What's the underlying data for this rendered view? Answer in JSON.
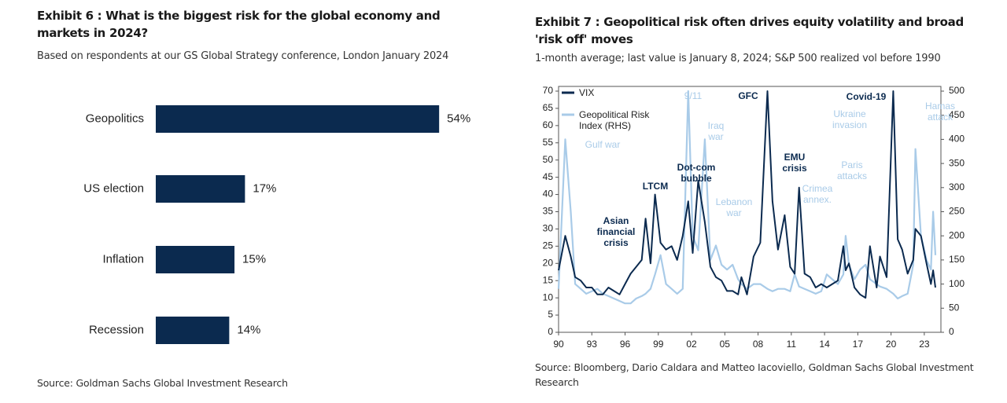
{
  "chart_data": [
    {
      "type": "bar",
      "orientation": "horizontal",
      "title": "Exhibit 6 : What is the biggest risk for the global economy and markets in 2024?",
      "subtitle": "Based on respondents at our GS Global Strategy conference, London January 2024",
      "source": "Source: Goldman Sachs Global Investment Research",
      "categories": [
        "Geopolitics",
        "US election",
        "Inflation",
        "Recession"
      ],
      "values": [
        54,
        17,
        15,
        14
      ],
      "value_labels": [
        "54%",
        "17%",
        "15%",
        "14%"
      ],
      "color": "#0b2a4f"
    },
    {
      "type": "line",
      "title": "Exhibit 7 : Geopolitical risk often drives equity volatility and broad 'risk off' moves",
      "subtitle": "1-month average; last value is January 8, 2024; S&P 500 realized vol before 1990",
      "source": "Source: Bloomberg, Dario Caldara and Matteo Iacoviello, Goldman Sachs Global Investment Research",
      "x": [
        1990.0,
        1990.6,
        1991.1,
        1991.5,
        1992.0,
        1992.5,
        1993.0,
        1993.5,
        1994.0,
        1994.5,
        1995.0,
        1995.5,
        1996.0,
        1996.5,
        1997.0,
        1997.5,
        1997.85,
        1998.3,
        1998.7,
        1999.2,
        1999.7,
        2000.2,
        2000.7,
        2001.2,
        2001.7,
        2002.1,
        2002.6,
        2003.2,
        2003.7,
        2004.2,
        2004.7,
        2005.2,
        2005.7,
        2006.2,
        2006.5,
        2007.0,
        2007.6,
        2008.2,
        2008.85,
        2009.3,
        2009.8,
        2010.4,
        2010.9,
        2011.3,
        2011.7,
        2012.2,
        2012.7,
        2013.2,
        2013.7,
        2014.2,
        2014.7,
        2015.2,
        2015.7,
        2015.9,
        2016.2,
        2016.7,
        2017.2,
        2017.7,
        2018.1,
        2018.7,
        2019.0,
        2019.6,
        2020.2,
        2020.6,
        2021.0,
        2021.5,
        2022.0,
        2022.2,
        2022.7,
        2023.2,
        2023.6,
        2023.8,
        2024.0
      ],
      "xlim": [
        1990,
        2024.5
      ],
      "xticks": [
        {
          "value": 1990,
          "label": "90"
        },
        {
          "value": 1993,
          "label": "93"
        },
        {
          "value": 1996,
          "label": "96"
        },
        {
          "value": 1999,
          "label": "99"
        },
        {
          "value": 2002,
          "label": "02"
        },
        {
          "value": 2005,
          "label": "05"
        },
        {
          "value": 2008,
          "label": "08"
        },
        {
          "value": 2011,
          "label": "11"
        },
        {
          "value": 2014,
          "label": "14"
        },
        {
          "value": 2017,
          "label": "17"
        },
        {
          "value": 2020,
          "label": "20"
        },
        {
          "value": 2023,
          "label": "23"
        }
      ],
      "ylim": [
        0,
        70
      ],
      "yticks": [
        0,
        5,
        10,
        15,
        20,
        25,
        30,
        35,
        40,
        45,
        50,
        55,
        60,
        65,
        70
      ],
      "y2lim": [
        0,
        500
      ],
      "y2ticks": [
        0,
        50,
        100,
        150,
        200,
        250,
        300,
        350,
        400,
        450,
        500
      ],
      "series": [
        {
          "name": "VIX",
          "color": "#0b2a4f",
          "values": [
            18,
            28,
            22,
            16,
            15,
            13,
            13,
            11,
            11,
            13,
            12,
            11,
            14,
            17,
            19,
            21,
            33,
            20,
            40,
            26,
            24,
            25,
            21,
            28,
            38,
            23,
            44,
            32,
            19,
            16,
            15,
            12,
            12,
            11,
            16,
            11,
            22,
            26,
            70,
            38,
            24,
            34,
            19,
            17,
            42,
            17,
            16,
            13,
            14,
            13,
            14,
            15,
            25,
            18,
            20,
            13,
            11,
            10,
            25,
            13,
            22,
            16,
            70,
            27,
            24,
            17,
            21,
            30,
            28,
            20,
            14,
            18,
            13
          ]
        },
        {
          "name": "Geopolitical Risk Index (RHS)",
          "color": "#a9cbe8",
          "axis": "y2",
          "values": [
            90,
            400,
            250,
            100,
            90,
            80,
            85,
            90,
            80,
            75,
            70,
            65,
            60,
            60,
            70,
            75,
            80,
            90,
            120,
            160,
            100,
            90,
            80,
            90,
            500,
            200,
            170,
            400,
            150,
            180,
            140,
            130,
            140,
            110,
            100,
            90,
            100,
            100,
            90,
            85,
            90,
            90,
            85,
            120,
            95,
            90,
            85,
            80,
            85,
            120,
            110,
            100,
            120,
            200,
            140,
            110,
            130,
            140,
            110,
            100,
            95,
            90,
            80,
            70,
            75,
            80,
            140,
            380,
            200,
            150,
            130,
            250,
            160
          ]
        }
      ],
      "legend": "upper left",
      "annotations": [
        {
          "text": "Gulf war",
          "color": "#a9cbe8"
        },
        {
          "text": "9/11",
          "color": "#a9cbe8"
        },
        {
          "text": "Iraq war",
          "color": "#a9cbe8"
        },
        {
          "text": "Lebanon war",
          "color": "#a9cbe8"
        },
        {
          "text": "Crimea annex.",
          "color": "#a9cbe8"
        },
        {
          "text": "Ukraine invasion",
          "color": "#a9cbe8"
        },
        {
          "text": "Paris attacks",
          "color": "#a9cbe8"
        },
        {
          "text": "Hamas attack",
          "color": "#a9cbe8"
        },
        {
          "text": "Asian financial crisis",
          "color": "#0b2a4f"
        },
        {
          "text": "LTCM",
          "color": "#0b2a4f"
        },
        {
          "text": "Dot-com bubble",
          "color": "#0b2a4f"
        },
        {
          "text": "GFC",
          "color": "#0b2a4f"
        },
        {
          "text": "EMU crisis",
          "color": "#0b2a4f"
        },
        {
          "text": "Covid-19",
          "color": "#0b2a4f"
        }
      ]
    }
  ]
}
